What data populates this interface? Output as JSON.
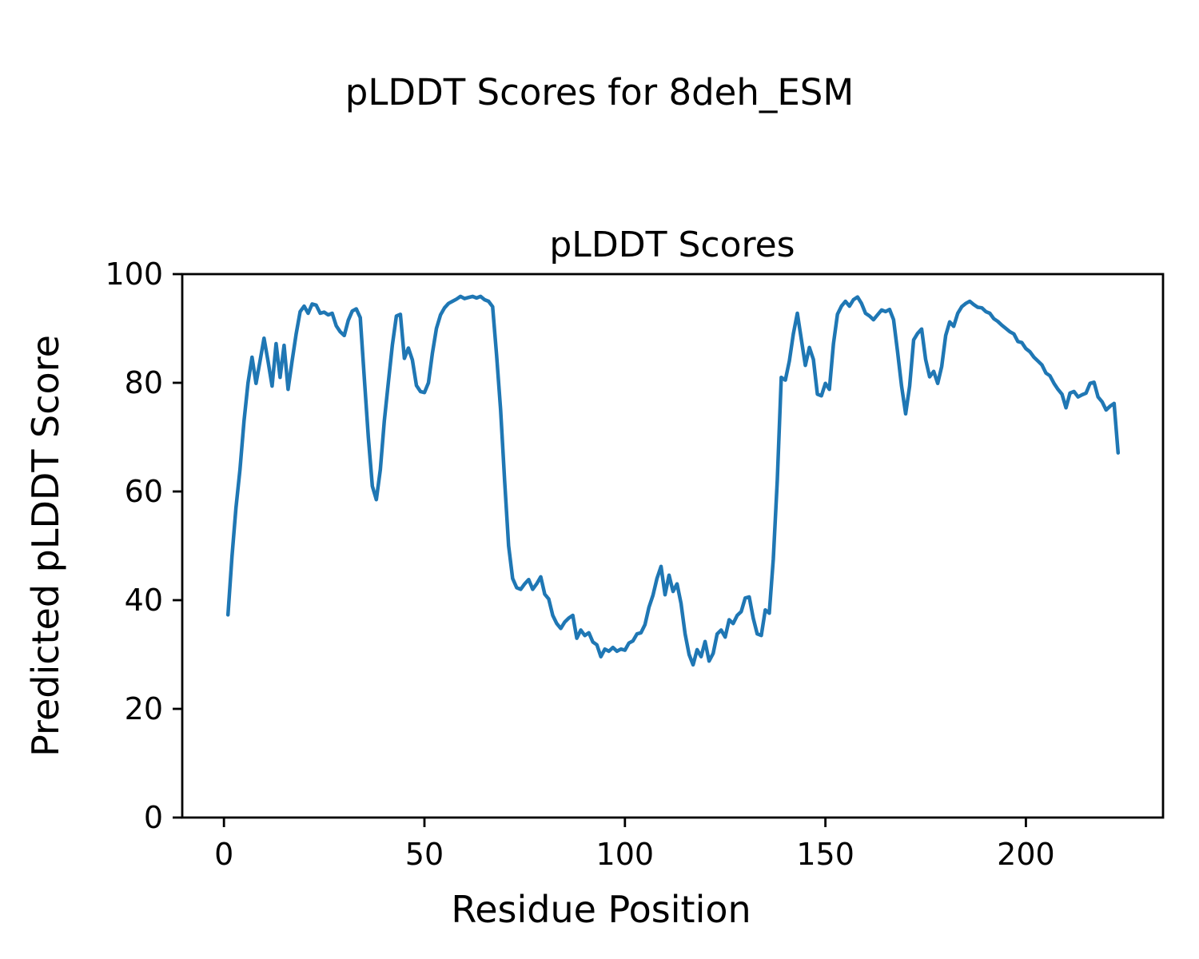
{
  "figure": {
    "suptitle": "pLDDT Scores for 8deh_ESM",
    "background": "#ffffff",
    "text_color": "#000000"
  },
  "chart_data": {
    "type": "line",
    "title": "pLDDT Scores",
    "xlabel": "Residue Position",
    "ylabel": "Predicted pLDDT Score",
    "xlim": [
      -10.4,
      234.2
    ],
    "ylim": [
      0,
      100
    ],
    "xticks": [
      0,
      50,
      100,
      150,
      200
    ],
    "yticks": [
      0,
      20,
      40,
      60,
      80,
      100
    ],
    "grid": false,
    "legend_position": "none",
    "axis_color": "#000000",
    "series": [
      {
        "name": "pLDDT",
        "color": "#1f77b4",
        "x_start": 1,
        "x_step": 1,
        "values": [
          37.3,
          48,
          57,
          64,
          73,
          80,
          84.7,
          79.9,
          84,
          88.2,
          84,
          79.4,
          87.2,
          81,
          86.9,
          78.8,
          84,
          89,
          93.1,
          94.1,
          92.8,
          94.5,
          94.3,
          92.8,
          93,
          92.5,
          92.8,
          90.5,
          89.4,
          88.7,
          91.5,
          93.2,
          93.6,
          92,
          81,
          70,
          61,
          58.5,
          64,
          73,
          80,
          87,
          92.3,
          92.6,
          84.5,
          86.4,
          84.2,
          79.5,
          78.4,
          78.2,
          80,
          85.5,
          90,
          92.5,
          93.8,
          94.6,
          95,
          95.4,
          95.9,
          95.5,
          95.7,
          95.9,
          95.6,
          95.9,
          95.3,
          95,
          94,
          85,
          75,
          62,
          50,
          44,
          42.3,
          42,
          43,
          43.8,
          42,
          43,
          44.3,
          41.1,
          40.2,
          37.2,
          35.7,
          34.8,
          36,
          36.7,
          37.2,
          33,
          34.5,
          33.5,
          34,
          32.3,
          31.8,
          29.6,
          31,
          30.6,
          31.3,
          30.6,
          31,
          30.8,
          32.1,
          32.5,
          33.8,
          34,
          35.5,
          38.7,
          40.9,
          44,
          46.2,
          41,
          44.6,
          41.6,
          43,
          39.4,
          33.8,
          30,
          28.1,
          30.9,
          29.6,
          32.4,
          28.8,
          30.2,
          33.8,
          34.5,
          33.2,
          36.4,
          35.7,
          37.2,
          37.9,
          40.4,
          40.6,
          36.7,
          33.8,
          33.5,
          38.2,
          37.6,
          47.5,
          62,
          81,
          80.5,
          84,
          89,
          92.8,
          88,
          83.2,
          86.5,
          84.3,
          77.9,
          77.6,
          79.9,
          78.8,
          87.2,
          92.6,
          94.1,
          95,
          94.1,
          95.3,
          95.8,
          94.6,
          92.8,
          92.3,
          91.6,
          92.5,
          93.4,
          93.1,
          93.5,
          91.6,
          85.7,
          79.4,
          74.3,
          79.4,
          87.9,
          89.1,
          89.9,
          84.3,
          81.1,
          82.1,
          79.9,
          83,
          88.7,
          91.2,
          90.4,
          92.8,
          94,
          94.6,
          95,
          94.4,
          93.9,
          93.8,
          93.1,
          92.8,
          91.8,
          91.3,
          90.6,
          90,
          89.4,
          89,
          87.6,
          87.4,
          86.3,
          85.7,
          84.7,
          84,
          83.3,
          81.8,
          81.3,
          79.9,
          78.8,
          77.9,
          75.4,
          78.1,
          78.4,
          77.4,
          77.8,
          78.1,
          79.9,
          80.1,
          77.4,
          76.5,
          75,
          75.7,
          76.2,
          67.1
        ]
      }
    ]
  }
}
